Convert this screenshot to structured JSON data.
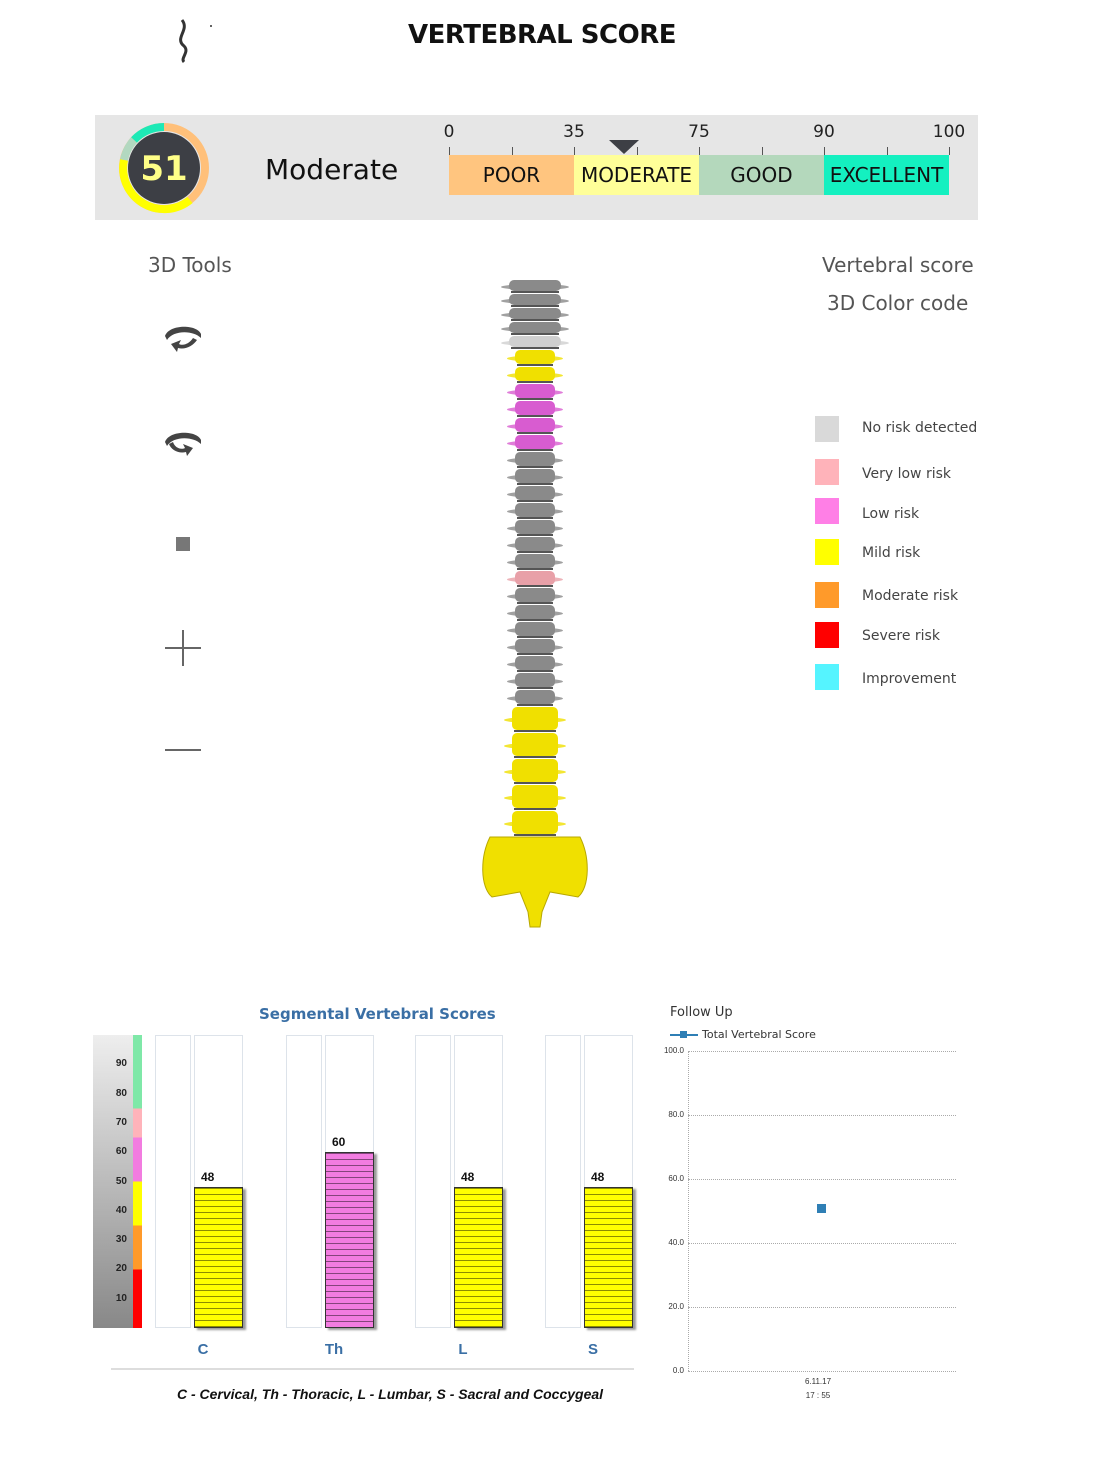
{
  "header": {
    "title": "VERTEBRAL SCORE",
    "logo_icon": "spine-s-curve-icon"
  },
  "score": {
    "value": "51",
    "level": "Moderate",
    "ring_colors": [
      "#1de9b6",
      "#ffc07a",
      "#ffff00",
      "#b2d8c0"
    ]
  },
  "scale": {
    "ticks": [
      "0",
      "35",
      "75",
      "90",
      "100"
    ],
    "marker_value": 51,
    "segments": [
      {
        "label": "POOR",
        "color": "#ffc57f",
        "range": [
          0,
          35
        ]
      },
      {
        "label": "MODERATE",
        "color": "#ffff99",
        "range": [
          35,
          75
        ]
      },
      {
        "label": "GOOD",
        "color": "#b4d8bc",
        "range": [
          75,
          90
        ]
      },
      {
        "label": "EXCELLENT",
        "color": "#14f0c0",
        "range": [
          90,
          100
        ]
      }
    ]
  },
  "tools": {
    "title": "3D Tools",
    "items": [
      "rotate-left-icon",
      "rotate-right-icon",
      "stop-square-icon",
      "zoom-in-plus-icon",
      "zoom-out-minus-icon"
    ]
  },
  "legend": {
    "title1": "Vertebral score",
    "title2": "3D Color code",
    "items": [
      {
        "label": "No risk detected",
        "color": "#d9d9d9"
      },
      {
        "label": "Very low risk",
        "color": "#ffb3ba"
      },
      {
        "label": "Low risk",
        "color": "#ff7fe6"
      },
      {
        "label": "Mild risk",
        "color": "#ffff00"
      },
      {
        "label": "Moderate risk",
        "color": "#ff9a2a"
      },
      {
        "label": "Severe risk",
        "color": "#ff0000"
      },
      {
        "label": "Improvement",
        "color": "#55f4ff"
      }
    ]
  },
  "spine": {
    "vertebrae": [
      "gray",
      "gray",
      "gray",
      "gray",
      "lightgray",
      "yellow",
      "yellow",
      "magenta",
      "magenta",
      "magenta",
      "magenta",
      "gray",
      "gray",
      "gray",
      "gray",
      "gray",
      "gray",
      "gray",
      "pink",
      "gray",
      "gray",
      "gray",
      "gray",
      "gray",
      "gray",
      "gray",
      "yellow",
      "yellow",
      "yellow",
      "yellow",
      "yellow"
    ],
    "sacrum": "yellow"
  },
  "chart_data": [
    {
      "type": "bar",
      "title": "Segmental Vertebral Scores",
      "categories": [
        "C",
        "Th",
        "L",
        "S"
      ],
      "values": [
        48,
        60,
        48,
        48
      ],
      "colors": [
        "#ffff00",
        "#f27ce0",
        "#ffff00",
        "#ffff00"
      ],
      "yticks": [
        "10",
        "20",
        "30",
        "40",
        "50",
        "60",
        "70",
        "80",
        "90"
      ],
      "ylim": [
        0,
        100
      ],
      "footnote": "C - Cervical, Th - Thoracic, L - Lumbar, S - Sacral and Coccygeal"
    },
    {
      "type": "line",
      "title": "Follow Up",
      "series": [
        {
          "name": "Total Vertebral Score",
          "color": "#2f7fb5",
          "points": [
            {
              "x": "6.11.17",
              "x2": "17 : 55",
              "y": 51
            }
          ]
        }
      ],
      "yticks": [
        "100.0",
        "80.0",
        "60.0",
        "40.0",
        "20.0",
        "0.0"
      ],
      "ylim": [
        0,
        100
      ],
      "grid": true,
      "legend": "top-left"
    }
  ]
}
